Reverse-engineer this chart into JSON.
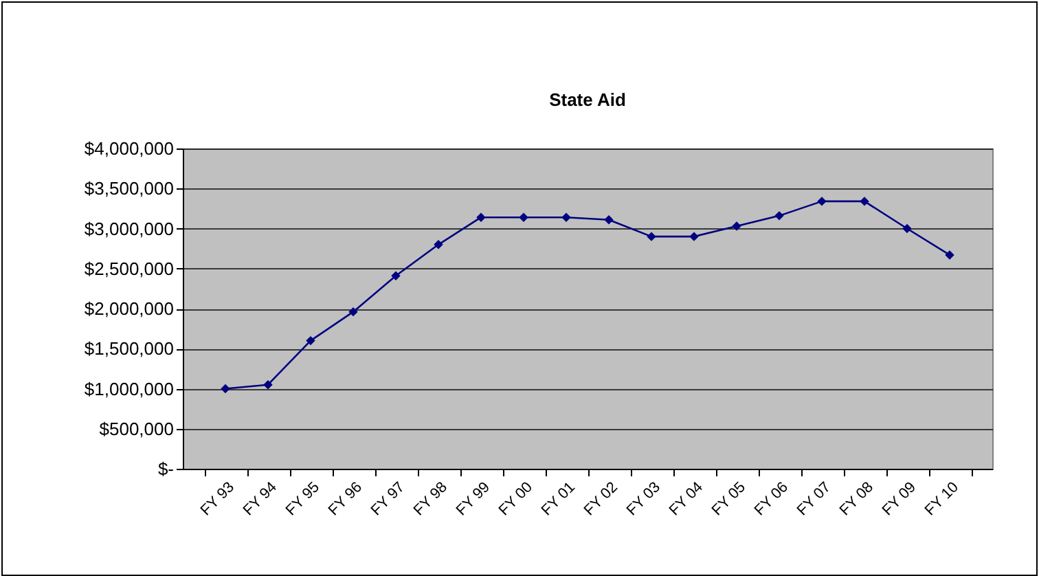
{
  "chart_data": {
    "type": "line",
    "title": "State Aid",
    "categories": [
      "FY 93",
      "FY 94",
      "FY 95",
      "FY 96",
      "FY 97",
      "FY 98",
      "FY 99",
      "FY 00",
      "FY 01",
      "FY 02",
      "FY 03",
      "FY 04",
      "FY 05",
      "FY 06",
      "FY 07",
      "FY 08",
      "FY 09",
      "FY 10"
    ],
    "series": [
      {
        "color": "#000080",
        "values": [
          1000000,
          1050000,
          1600000,
          1960000,
          2410000,
          2800000,
          3140000,
          3140000,
          3140000,
          3110000,
          2900000,
          2900000,
          3030000,
          3160000,
          3340000,
          3340000,
          3000000,
          2670000
        ]
      }
    ],
    "ylim": [
      0,
      4000000
    ],
    "yticks": [
      {
        "value": 0,
        "label": "$-"
      },
      {
        "value": 500000,
        "label": "$500,000"
      },
      {
        "value": 1000000,
        "label": "$1,000,000"
      },
      {
        "value": 1500000,
        "label": "$1,500,000"
      },
      {
        "value": 2000000,
        "label": "$2,000,000"
      },
      {
        "value": 2500000,
        "label": "$2,500,000"
      },
      {
        "value": 3000000,
        "label": "$3,000,000"
      },
      {
        "value": 3500000,
        "label": "$3,500,000"
      },
      {
        "value": 4000000,
        "label": "$4,000,000"
      }
    ],
    "grid": "y",
    "legend": false,
    "marker": "diamond",
    "line_style": "solid"
  }
}
